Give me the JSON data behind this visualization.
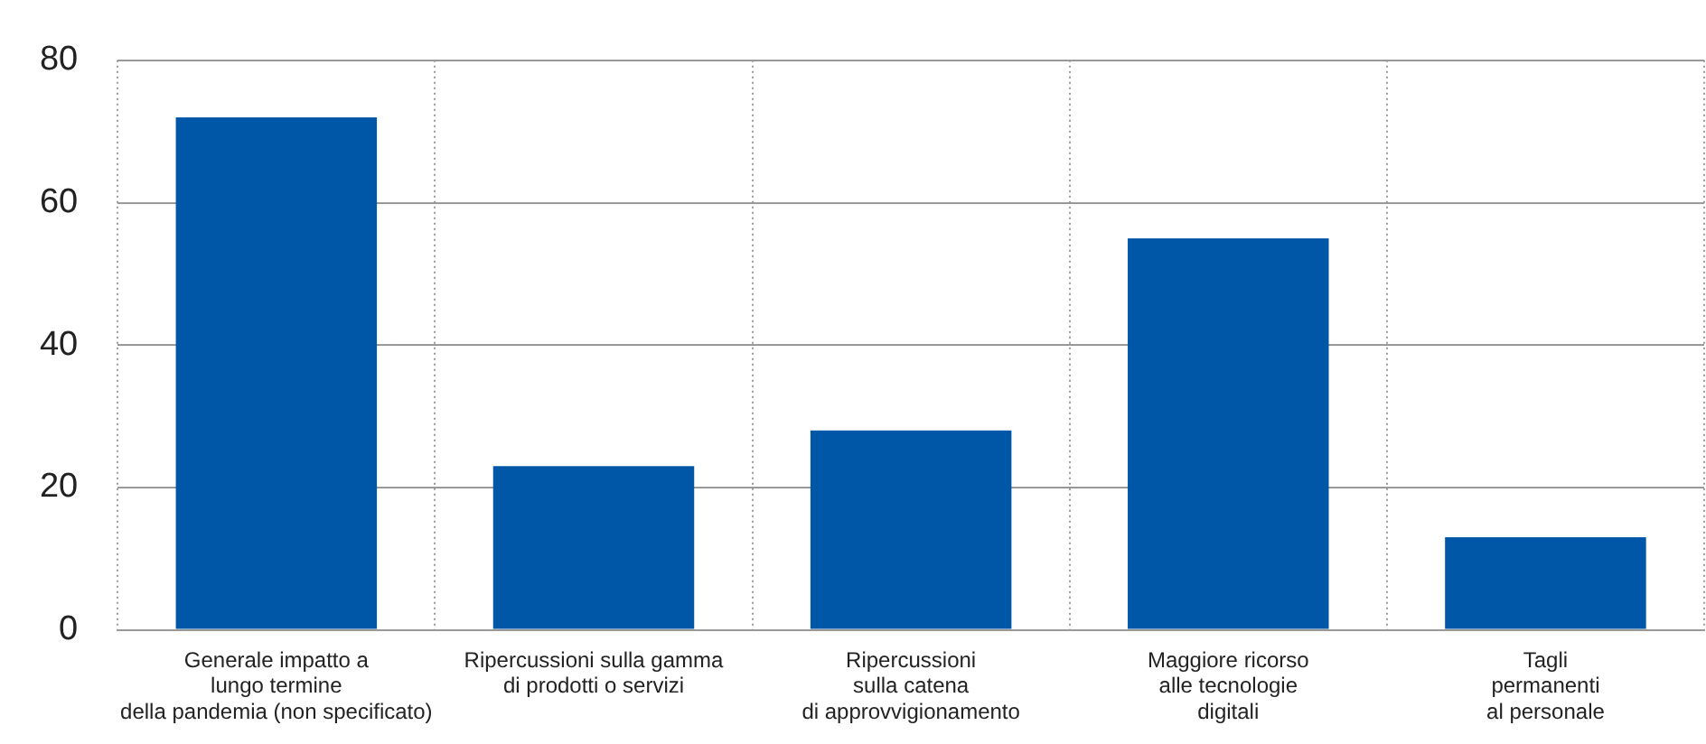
{
  "chart_data": {
    "type": "bar",
    "categories": [
      "Generale impatto a\nlungo termine\ndella pandemia (non specificato)",
      "Ripercussioni sulla gamma\ndi prodotti o servizi",
      "Ripercussioni\nsulla catena\ndi approvvigionamento",
      "Maggiore ricorso\nalle tecnologie\ndigitali",
      "Tagli\npermanenti\nal personale"
    ],
    "values": [
      72,
      23,
      28,
      55,
      13
    ],
    "color": "#0057a8",
    "ylim": [
      0,
      80
    ],
    "yticks": [
      0,
      20,
      40,
      60,
      80
    ],
    "grid": true,
    "legend": false
  }
}
